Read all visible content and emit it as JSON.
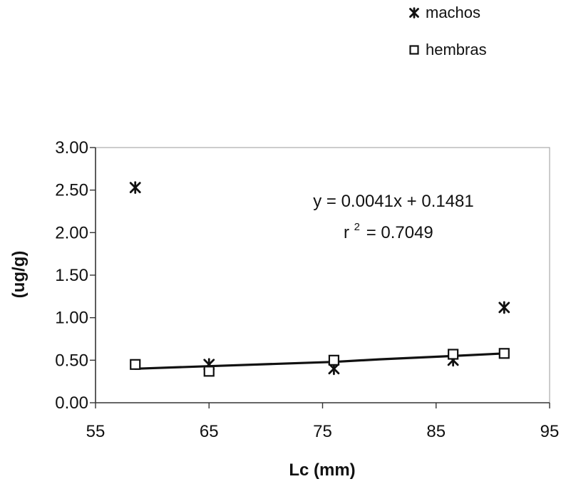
{
  "chart_data": {
    "type": "scatter",
    "xlabel": "Lc (mm)",
    "ylabel": "(ug/g)",
    "xlim": [
      55,
      95
    ],
    "ylim": [
      0,
      3
    ],
    "x_ticks": [
      "55",
      "65",
      "75",
      "85",
      "95"
    ],
    "y_ticks": [
      "0.00",
      "0.50",
      "1.00",
      "1.50",
      "2.00",
      "2.50",
      "3.00"
    ],
    "legend_position": "top-right",
    "series": [
      {
        "name": "machos",
        "marker": "asterisk",
        "points": [
          {
            "x": 58.5,
            "y": 2.53
          },
          {
            "x": 65.0,
            "y": 0.45
          },
          {
            "x": 76.0,
            "y": 0.4
          },
          {
            "x": 86.5,
            "y": 0.5
          },
          {
            "x": 91.0,
            "y": 1.12
          }
        ]
      },
      {
        "name": "hembras",
        "marker": "open-square",
        "points": [
          {
            "x": 58.5,
            "y": 0.45
          },
          {
            "x": 65.0,
            "y": 0.37
          },
          {
            "x": 76.0,
            "y": 0.5
          },
          {
            "x": 86.5,
            "y": 0.57
          },
          {
            "x": 91.0,
            "y": 0.58
          }
        ]
      }
    ],
    "trendline": {
      "points": [
        {
          "x": 58.5,
          "y": 0.4
        },
        {
          "x": 65.0,
          "y": 0.43
        },
        {
          "x": 76.0,
          "y": 0.48
        },
        {
          "x": 80.0,
          "y": 0.51
        },
        {
          "x": 86.5,
          "y": 0.55
        },
        {
          "x": 91.0,
          "y": 0.58
        }
      ],
      "equation": "y = 0.0041x + 0.1481",
      "r2_symbol": "r",
      "r2_exponent": "2",
      "r2_value": "= 0.7049"
    }
  },
  "colors": {
    "ink": "#111111",
    "axis": "#333333",
    "background": "#ffffff"
  }
}
